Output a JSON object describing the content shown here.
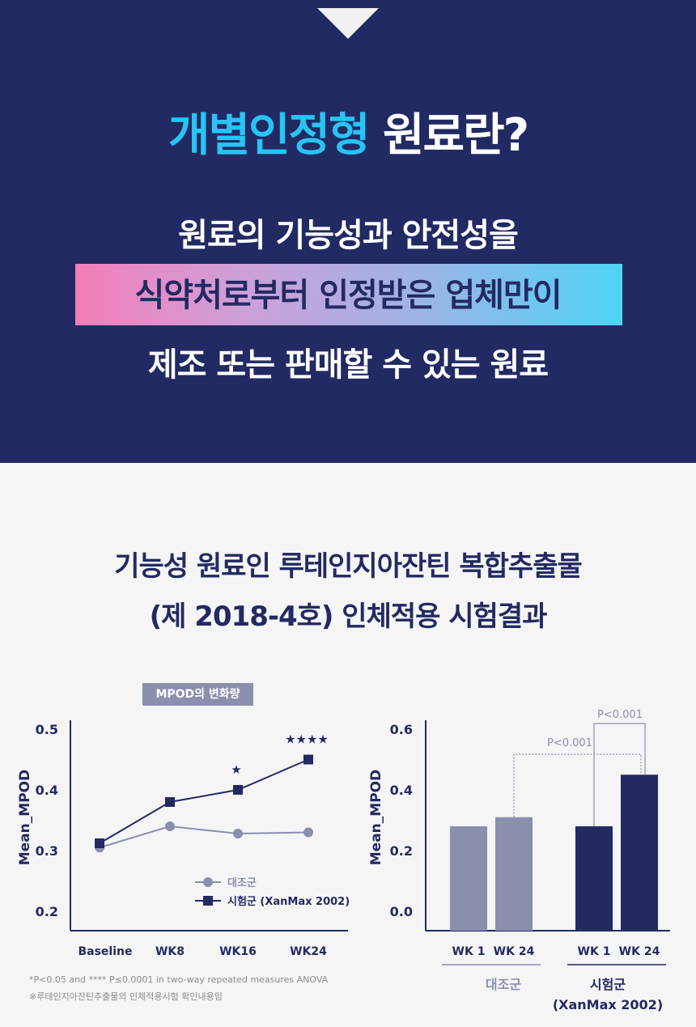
{
  "hero": {
    "headline_accent": "개별인정형",
    "headline_rest": " 원료란?",
    "line1": "원료의 기능성과 안전성을",
    "line2": "식약처로부터 인정받은 업체만이",
    "line3": "제조 또는 판매할 수 있는 원료"
  },
  "section": {
    "title_line1": "기능성 원료인 루테인지아잔틴 복합추출물",
    "title_line2": "(제 2018-4호) 인체적용 시험결과"
  },
  "chart_data": [
    {
      "type": "line",
      "title": "MPOD의 변화량",
      "ylabel": "Mean_MPOD",
      "xlabel": "",
      "categories": [
        "Baseline",
        "WK8",
        "WK16",
        "WK24"
      ],
      "ylim": [
        0.2,
        0.5
      ],
      "yticks": [
        "0.5",
        "0.4",
        "0.3",
        "0.2"
      ],
      "series": [
        {
          "name": "대조군",
          "values": [
            0.305,
            0.34,
            0.328,
            0.33
          ],
          "color": "#8a8fae",
          "marker": "circle"
        },
        {
          "name": "시험군 (XanMax 2002)",
          "values": [
            0.312,
            0.38,
            0.4,
            0.45
          ],
          "color": "#232a62",
          "marker": "square"
        }
      ],
      "significance": [
        {
          "category": "WK16",
          "label": "★"
        },
        {
          "category": "WK24",
          "label": "★★★★"
        }
      ],
      "legend_position": "bottom-right",
      "grid": false
    },
    {
      "type": "bar",
      "ylabel": "Mean_MPOD",
      "ylim": [
        0.0,
        0.6
      ],
      "yticks": [
        "0.6",
        "0.4",
        "0.2",
        "0.0"
      ],
      "groups": [
        {
          "name": "대조군",
          "categories": [
            "WK 1",
            "WK 24"
          ],
          "values": [
            0.28,
            0.31
          ],
          "color": "#8a8fae"
        },
        {
          "name": "시험군\n(XanMax 2002)",
          "name_line1": "시험군",
          "name_line2": "(XanMax 2002)",
          "categories": [
            "WK 1",
            "WK 24"
          ],
          "values": [
            0.28,
            0.45
          ],
          "color": "#232a62"
        }
      ],
      "annotations": [
        {
          "label": "P<0.001",
          "between": "대조군 WK 24 vs 시험군 WK 24"
        },
        {
          "label": "P<0.001",
          "between": "시험군 WK 1 vs 시험군 WK 24"
        }
      ],
      "grid": false
    }
  ],
  "footnotes": {
    "note1": "*P<0.05 and **** P≤0.0001 in two-way repeated measures ANOVA",
    "note2": "※루테인지아잔틴추출물의 인체적용시험 확인내용임"
  },
  "colors": {
    "navy": "#222a63",
    "accent_cyan": "#27c4f4",
    "control_gray": "#8a8fae"
  }
}
